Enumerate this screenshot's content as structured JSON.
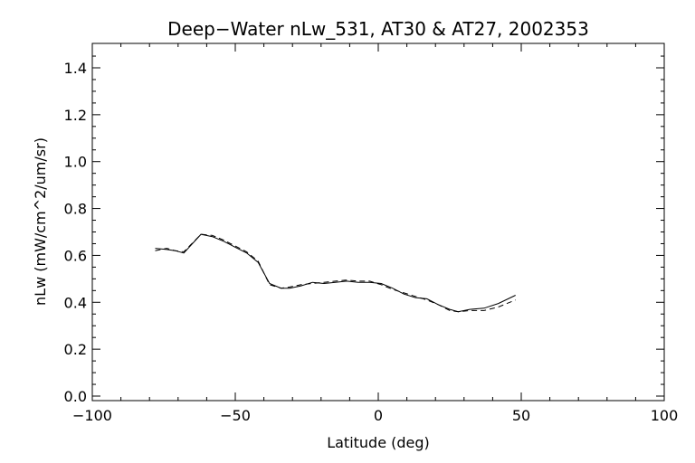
{
  "chart_data": {
    "type": "line",
    "title": "Deep−Water nLw_531, AT30 & AT27, 2002353",
    "xlabel": "Latitude (deg)",
    "ylabel": "nLw (mW/cm^2/um/sr)",
    "xlim": [
      -100,
      100
    ],
    "ylim": [
      0.0,
      1.5
    ],
    "xticks": [
      -100,
      -50,
      0,
      50,
      100
    ],
    "xtick_labels": [
      "−100",
      "−50",
      "0",
      "50",
      "100"
    ],
    "yticks": [
      0.0,
      0.2,
      0.4,
      0.6,
      0.8,
      1.0,
      1.2,
      1.4
    ],
    "ytick_labels": [
      "0.0",
      "0.2",
      "0.4",
      "0.6",
      "0.8",
      "1.0",
      "1.2",
      "1.4"
    ],
    "grid": false,
    "series": [
      {
        "style": "solid",
        "x": [
          -78,
          -74,
          -71,
          -68,
          -62,
          -58,
          -54,
          -50,
          -46,
          -42,
          -38,
          -34,
          -31,
          -27,
          -23,
          -19,
          -15,
          -11,
          -7,
          -3,
          1,
          5,
          9,
          13,
          17,
          21,
          25,
          28,
          32,
          37,
          42,
          48
        ],
        "y": [
          0.63,
          0.625,
          0.62,
          0.61,
          0.69,
          0.68,
          0.66,
          0.635,
          0.61,
          0.57,
          0.48,
          0.46,
          0.46,
          0.47,
          0.485,
          0.48,
          0.485,
          0.49,
          0.485,
          0.485,
          0.48,
          0.46,
          0.435,
          0.42,
          0.415,
          0.39,
          0.37,
          0.36,
          0.37,
          0.375,
          0.395,
          0.43
        ]
      },
      {
        "style": "dashed",
        "x": [
          -78,
          -74,
          -71,
          -68,
          -62,
          -58,
          -54,
          -50,
          -46,
          -42,
          -38,
          -34,
          -31,
          -27,
          -23,
          -19,
          -15,
          -11,
          -7,
          -3,
          1,
          5,
          9,
          13,
          17,
          21,
          25,
          28,
          32,
          37,
          42,
          48
        ],
        "y": [
          0.62,
          0.63,
          0.62,
          0.615,
          0.69,
          0.685,
          0.665,
          0.64,
          0.615,
          0.575,
          0.475,
          0.46,
          0.465,
          0.475,
          0.48,
          0.485,
          0.49,
          0.495,
          0.49,
          0.49,
          0.475,
          0.455,
          0.44,
          0.425,
          0.41,
          0.39,
          0.365,
          0.36,
          0.365,
          0.365,
          0.38,
          0.41
        ]
      }
    ]
  }
}
